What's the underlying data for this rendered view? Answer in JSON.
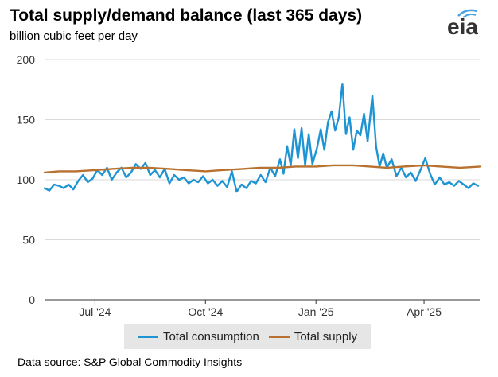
{
  "header": {
    "title": "Total supply/demand balance (last 365 days)",
    "subtitle": "billion cubic feet per day",
    "logo_text": "eia"
  },
  "footer": {
    "source": "Data source: S&P Global Commodity Insights"
  },
  "colors": {
    "consumption": "#1f94d3",
    "supply": "#b8712e",
    "grid": "#d9d9d9",
    "axis": "#333333",
    "logo_accent": "#4aa3df"
  },
  "chart_data": {
    "type": "line",
    "title": "Total supply/demand balance (last 365 days)",
    "ylabel": "billion cubic feet per day",
    "ylim": [
      0,
      200
    ],
    "yticks": [
      0,
      50,
      100,
      150,
      200
    ],
    "grid": true,
    "legend_position": "bottom",
    "x_start": "2024-05-20",
    "x_end": "2025-05-18",
    "xticks": [
      {
        "date": "2024-07-01",
        "label": "Jul '24"
      },
      {
        "date": "2024-10-01",
        "label": "Oct '24"
      },
      {
        "date": "2025-01-01",
        "label": "Jan '25"
      },
      {
        "date": "2025-04-01",
        "label": "Apr '25"
      }
    ],
    "series": [
      {
        "name": "Total consumption",
        "color": "#1f94d3",
        "points": [
          [
            "2024-05-20",
            93
          ],
          [
            "2024-05-24",
            91
          ],
          [
            "2024-05-28",
            96
          ],
          [
            "2024-06-01",
            95
          ],
          [
            "2024-06-05",
            93
          ],
          [
            "2024-06-09",
            96
          ],
          [
            "2024-06-13",
            92
          ],
          [
            "2024-06-17",
            99
          ],
          [
            "2024-06-21",
            104
          ],
          [
            "2024-06-25",
            98
          ],
          [
            "2024-06-29",
            101
          ],
          [
            "2024-07-03",
            108
          ],
          [
            "2024-07-07",
            104
          ],
          [
            "2024-07-11",
            110
          ],
          [
            "2024-07-15",
            100
          ],
          [
            "2024-07-19",
            106
          ],
          [
            "2024-07-23",
            110
          ],
          [
            "2024-07-27",
            102
          ],
          [
            "2024-07-31",
            106
          ],
          [
            "2024-08-04",
            113
          ],
          [
            "2024-08-08",
            109
          ],
          [
            "2024-08-12",
            114
          ],
          [
            "2024-08-16",
            104
          ],
          [
            "2024-08-20",
            108
          ],
          [
            "2024-08-24",
            102
          ],
          [
            "2024-08-28",
            109
          ],
          [
            "2024-09-01",
            97
          ],
          [
            "2024-09-05",
            104
          ],
          [
            "2024-09-09",
            100
          ],
          [
            "2024-09-13",
            102
          ],
          [
            "2024-09-17",
            97
          ],
          [
            "2024-09-21",
            100
          ],
          [
            "2024-09-25",
            98
          ],
          [
            "2024-09-29",
            103
          ],
          [
            "2024-10-03",
            97
          ],
          [
            "2024-10-07",
            100
          ],
          [
            "2024-10-11",
            95
          ],
          [
            "2024-10-15",
            99
          ],
          [
            "2024-10-19",
            94
          ],
          [
            "2024-10-23",
            107
          ],
          [
            "2024-10-27",
            90
          ],
          [
            "2024-10-31",
            96
          ],
          [
            "2024-11-04",
            93
          ],
          [
            "2024-11-08",
            99
          ],
          [
            "2024-11-12",
            97
          ],
          [
            "2024-11-16",
            104
          ],
          [
            "2024-11-20",
            98
          ],
          [
            "2024-11-24",
            110
          ],
          [
            "2024-11-28",
            103
          ],
          [
            "2024-12-02",
            117
          ],
          [
            "2024-12-05",
            105
          ],
          [
            "2024-12-08",
            128
          ],
          [
            "2024-12-11",
            112
          ],
          [
            "2024-12-14",
            142
          ],
          [
            "2024-12-17",
            118
          ],
          [
            "2024-12-20",
            143
          ],
          [
            "2024-12-23",
            112
          ],
          [
            "2024-12-26",
            138
          ],
          [
            "2024-12-29",
            113
          ],
          [
            "2025-01-02",
            127
          ],
          [
            "2025-01-05",
            142
          ],
          [
            "2025-01-08",
            125
          ],
          [
            "2025-01-11",
            148
          ],
          [
            "2025-01-14",
            157
          ],
          [
            "2025-01-17",
            141
          ],
          [
            "2025-01-20",
            152
          ],
          [
            "2025-01-23",
            180
          ],
          [
            "2025-01-26",
            138
          ],
          [
            "2025-01-29",
            152
          ],
          [
            "2025-02-01",
            125
          ],
          [
            "2025-02-04",
            141
          ],
          [
            "2025-02-07",
            137
          ],
          [
            "2025-02-10",
            155
          ],
          [
            "2025-02-13",
            132
          ],
          [
            "2025-02-17",
            170
          ],
          [
            "2025-02-20",
            128
          ],
          [
            "2025-02-23",
            111
          ],
          [
            "2025-02-26",
            122
          ],
          [
            "2025-03-01",
            110
          ],
          [
            "2025-03-05",
            117
          ],
          [
            "2025-03-09",
            103
          ],
          [
            "2025-03-13",
            110
          ],
          [
            "2025-03-17",
            102
          ],
          [
            "2025-03-21",
            106
          ],
          [
            "2025-03-25",
            99
          ],
          [
            "2025-03-29",
            108
          ],
          [
            "2025-04-02",
            118
          ],
          [
            "2025-04-06",
            105
          ],
          [
            "2025-04-10",
            96
          ],
          [
            "2025-04-14",
            102
          ],
          [
            "2025-04-18",
            96
          ],
          [
            "2025-04-22",
            98
          ],
          [
            "2025-04-26",
            95
          ],
          [
            "2025-04-30",
            99
          ],
          [
            "2025-05-04",
            96
          ],
          [
            "2025-05-08",
            93
          ],
          [
            "2025-05-12",
            97
          ],
          [
            "2025-05-16",
            95
          ]
        ]
      },
      {
        "name": "Total supply",
        "color": "#b8712e",
        "points": [
          [
            "2024-05-20",
            106
          ],
          [
            "2024-06-01",
            107
          ],
          [
            "2024-06-15",
            107
          ],
          [
            "2024-07-01",
            108
          ],
          [
            "2024-07-15",
            109
          ],
          [
            "2024-08-01",
            110
          ],
          [
            "2024-08-15",
            110
          ],
          [
            "2024-09-01",
            109
          ],
          [
            "2024-09-15",
            108
          ],
          [
            "2024-10-01",
            107
          ],
          [
            "2024-10-15",
            108
          ],
          [
            "2024-11-01",
            109
          ],
          [
            "2024-11-15",
            110
          ],
          [
            "2024-12-01",
            110
          ],
          [
            "2024-12-15",
            111
          ],
          [
            "2025-01-01",
            111
          ],
          [
            "2025-01-15",
            112
          ],
          [
            "2025-02-01",
            112
          ],
          [
            "2025-02-15",
            111
          ],
          [
            "2025-03-01",
            110
          ],
          [
            "2025-03-15",
            111
          ],
          [
            "2025-04-01",
            112
          ],
          [
            "2025-04-15",
            111
          ],
          [
            "2025-05-01",
            110
          ],
          [
            "2025-05-18",
            111
          ]
        ]
      }
    ]
  }
}
